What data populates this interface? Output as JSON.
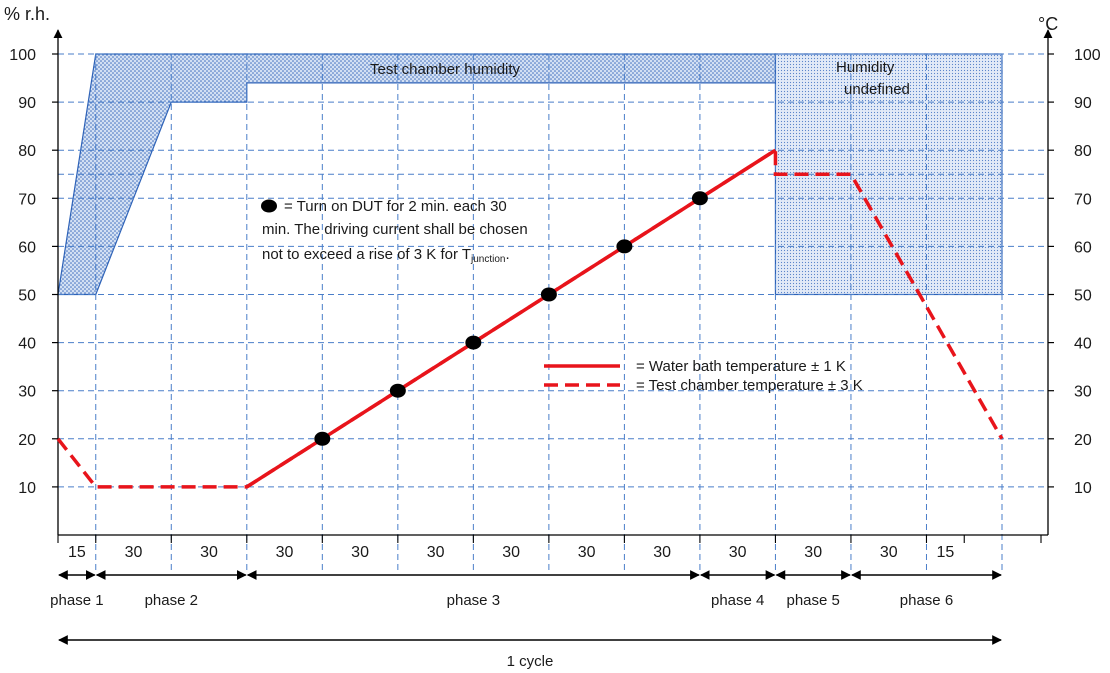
{
  "chart_data": {
    "type": "line",
    "left_axis_label": "% r.h.",
    "right_axis_label": "°C",
    "y_ticks_left": [
      "10",
      "20",
      "30",
      "40",
      "50",
      "60",
      "70",
      "80",
      "90",
      "100"
    ],
    "y_ticks_right": [
      "10",
      "20",
      "30",
      "40",
      "50",
      "60",
      "70",
      "80",
      "90",
      "100"
    ],
    "ylim": [
      0,
      100
    ],
    "x_unit": "minutes",
    "x_segment_labels": [
      "15",
      "30",
      "30",
      "30",
      "30",
      "30",
      "30",
      "30",
      "30",
      "30",
      "30",
      "30",
      "15"
    ],
    "x_segment_minutes": [
      15,
      30,
      30,
      30,
      30,
      30,
      30,
      30,
      30,
      30,
      30,
      30,
      15
    ],
    "x_gridlines_minutes": [
      15,
      45,
      75,
      105,
      135,
      165,
      195,
      225,
      255,
      285,
      315,
      345,
      375
    ],
    "grid": true,
    "humidity_band_label": "Test chamber humidity",
    "humidity_undefined_label": "Humidity undefined",
    "humidity_band": {
      "lower": [
        [
          0,
          50
        ],
        [
          15,
          50
        ],
        [
          45,
          90
        ],
        [
          75,
          90
        ],
        [
          75,
          94
        ],
        [
          285,
          94
        ]
      ],
      "upper": [
        [
          0,
          50
        ],
        [
          15,
          100
        ],
        [
          285,
          100
        ]
      ]
    },
    "humidity_undefined": {
      "x": [
        285,
        375
      ],
      "y": [
        50,
        100
      ]
    },
    "series": [
      {
        "name": "= Water bath temperature ± 1 K",
        "style": "solid",
        "color": "#e8141b",
        "points": [
          [
            75,
            10
          ],
          [
            285,
            80
          ]
        ]
      },
      {
        "name": "= Test chamber temperature ± 3 K",
        "style": "dashed",
        "color": "#e8141b",
        "points": [
          [
            0,
            20
          ],
          [
            15,
            10
          ],
          [
            75,
            10
          ],
          [
            285,
            80
          ],
          [
            285,
            75
          ],
          [
            315,
            75
          ],
          [
            375,
            20
          ]
        ]
      }
    ],
    "dut_markers": {
      "x": [
        105,
        135,
        165,
        195,
        225,
        255
      ],
      "y": [
        20,
        30,
        40,
        50,
        60,
        70
      ]
    },
    "dut_note": {
      "marker_text": "= Turn on DUT for 2 min. each 30",
      "line2": "min. The driving current shall be chosen",
      "line3_prefix": "not to exceed a rise of 3 K for T",
      "subscript": "junction",
      "suffix": "."
    },
    "phases": [
      {
        "label": "phase 1",
        "start": 0,
        "end": 15
      },
      {
        "label": "phase 2",
        "start": 15,
        "end": 75
      },
      {
        "label": "phase 3",
        "start": 75,
        "end": 255
      },
      {
        "label": "phase 4",
        "start": 255,
        "end": 285
      },
      {
        "label": "phase 5",
        "start": 285,
        "end": 315
      },
      {
        "label": "phase 6",
        "start": 315,
        "end": 375
      }
    ],
    "cycle_label": "1 cycle",
    "colors": {
      "grid": "#4a7ec9",
      "band": "#2f63b8",
      "red": "#e8141b",
      "axis": "#000000"
    }
  }
}
